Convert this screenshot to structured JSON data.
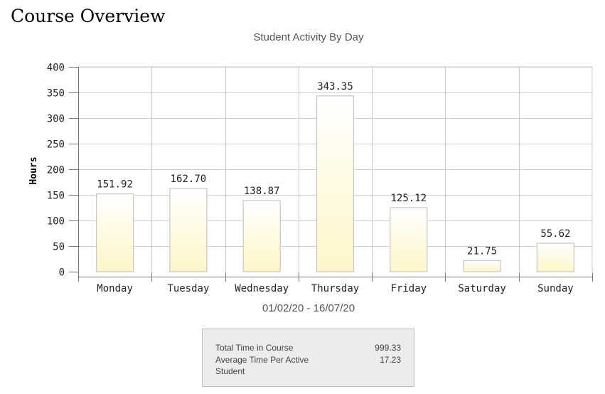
{
  "page": {
    "title": "Course Overview"
  },
  "chart_data": {
    "type": "bar",
    "title": "Student Activity By Day",
    "ylabel": "Hours",
    "xlabel": "01/02/20 - 16/07/20",
    "categories": [
      "Monday",
      "Tuesday",
      "Wednesday",
      "Thursday",
      "Friday",
      "Saturday",
      "Sunday"
    ],
    "values": [
      151.92,
      162.7,
      138.87,
      343.35,
      125.12,
      21.75,
      55.62
    ],
    "value_labels": [
      "151.92",
      "162.70",
      "138.87",
      "343.35",
      "125.12",
      "21.75",
      "55.62"
    ],
    "ylim": [
      0,
      400
    ],
    "yticks": [
      "0",
      "50",
      "100",
      "150",
      "200",
      "250",
      "300",
      "350",
      "400"
    ],
    "grid": true,
    "bar_gradient": [
      "#fff6c8",
      "#ffffff"
    ]
  },
  "summary": {
    "rows": [
      {
        "label": "Total Time in Course",
        "value": "999.33"
      },
      {
        "label": "Average Time Per Active Student",
        "value": "17.23"
      }
    ]
  }
}
